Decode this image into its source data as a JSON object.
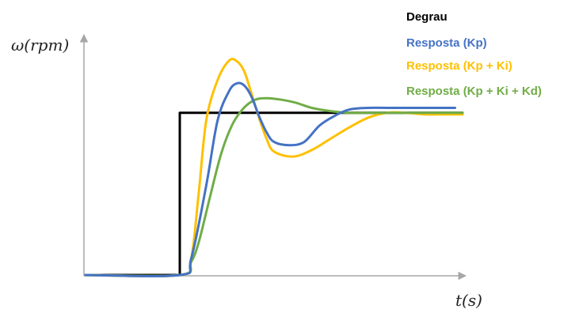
{
  "chart_data": {
    "type": "line",
    "title": "",
    "ylabel": "ω(rpm)",
    "xlabel": "t(s)",
    "grid": false,
    "legend_placement": "top-right",
    "xlim": [
      0,
      10
    ],
    "ylim": [
      0,
      1.5
    ],
    "series": [
      {
        "name": "Degrau",
        "color": "#000000",
        "x": [
          0,
          2.5,
          2.5,
          10
        ],
        "y": [
          0,
          0,
          1,
          1
        ]
      },
      {
        "name": "Resposta (Kp)",
        "color": "#4472C4",
        "x": [
          0,
          2.5,
          2.8,
          3.2,
          3.5,
          3.8,
          4.0,
          4.2,
          4.4,
          4.6,
          4.8,
          5.0,
          5.4,
          5.8,
          6.2,
          6.6,
          7.0,
          7.5,
          8.0,
          9.0,
          9.8
        ],
        "y": [
          0,
          0,
          0.1,
          0.55,
          0.95,
          1.13,
          1.18,
          1.17,
          1.1,
          0.98,
          0.88,
          0.82,
          0.8,
          0.82,
          0.92,
          0.98,
          1.02,
          1.03,
          1.03,
          1.03,
          1.03
        ]
      },
      {
        "name": "Resposta (Kp + Ki)",
        "color": "#FFC000",
        "x": [
          0,
          2.5,
          2.8,
          3.0,
          3.2,
          3.5,
          3.8,
          4.0,
          4.2,
          4.4,
          4.6,
          4.8,
          5.0,
          5.5,
          6.0,
          6.5,
          7.0,
          7.5,
          8.0,
          8.5,
          9.0,
          9.5,
          10.0
        ],
        "y": [
          0,
          0,
          0.1,
          0.5,
          0.95,
          1.2,
          1.32,
          1.32,
          1.26,
          1.12,
          0.97,
          0.84,
          0.76,
          0.73,
          0.77,
          0.84,
          0.91,
          0.97,
          1.0,
          1.0,
          0.99,
          0.99,
          0.99
        ]
      },
      {
        "name": "Resposta (Kp + Ki + Kd)",
        "color": "#70AD47",
        "x": [
          0,
          2.5,
          2.8,
          3.0,
          3.3,
          3.6,
          3.9,
          4.2,
          4.5,
          4.8,
          5.2,
          5.6,
          6.0,
          6.5,
          7.0,
          8.0,
          9.0,
          10.0
        ],
        "y": [
          0,
          0,
          0.08,
          0.2,
          0.48,
          0.75,
          0.93,
          1.03,
          1.08,
          1.09,
          1.08,
          1.06,
          1.03,
          1.01,
          1.0,
          1.0,
          1.0,
          1.0
        ]
      }
    ]
  }
}
